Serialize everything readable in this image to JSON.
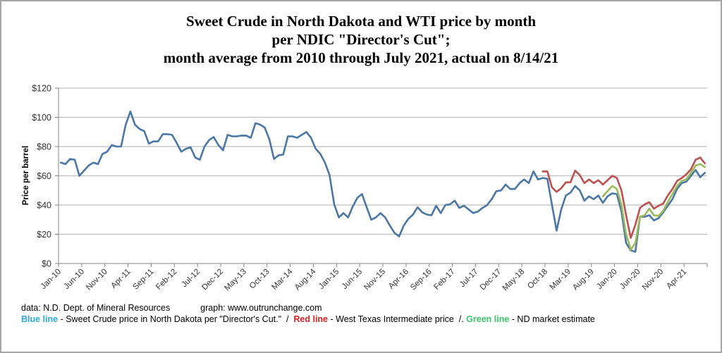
{
  "chart_data": {
    "type": "line",
    "title": [
      "Sweet Crude in North Dakota and WTI price by month",
      "per NDIC \"Director's Cut\";",
      "month average from 2010 through July 2021, actual on 8/14/21"
    ],
    "xlabel": "",
    "ylabel": "Price per barrel",
    "ylim": [
      0,
      120
    ],
    "yticks": [
      0,
      20,
      40,
      60,
      80,
      100,
      120
    ],
    "ytick_labels": [
      "$0",
      "$20",
      "$40",
      "$60",
      "$80",
      "$100",
      "$120"
    ],
    "grid": true,
    "x_start": "Jan-10",
    "x_count": 140,
    "xtick_every": 5,
    "xtick_labels": [
      "Jan-10",
      "Jun-10",
      "Nov-10",
      "Apr-11",
      "Sep-11",
      "Feb-12",
      "Jul-12",
      "Dec-12",
      "May-13",
      "Oct-13",
      "Mar-14",
      "Aug-14",
      "Jan-15",
      "Jun-15",
      "Nov-15",
      "Apr-16",
      "Sep-16",
      "Feb-17",
      "Jul-17",
      "Dec-17",
      "May-18",
      "Oct-18",
      "Mar-19",
      "Aug-19",
      "Jan-20",
      "Jun-20",
      "Nov-20",
      "Apr-21"
    ],
    "series": [
      {
        "name": "Blue line - Sweet Crude price in North Dakota",
        "color": "#4a76a8",
        "start_index": 0,
        "values": [
          69,
          68,
          71.5,
          71,
          60,
          63.5,
          67,
          69,
          68,
          75,
          76.5,
          81,
          80,
          80,
          95,
          104,
          95,
          92,
          90.5,
          82,
          83.5,
          83.5,
          88.5,
          88.5,
          88,
          82.5,
          76.5,
          78.5,
          79.5,
          72.5,
          71,
          80,
          84.5,
          86.5,
          81,
          77.5,
          88,
          87,
          87,
          87.5,
          87.5,
          86,
          96,
          95,
          93,
          85,
          71.5,
          74,
          74.5,
          87,
          87,
          86,
          88,
          90,
          86,
          78.5,
          75,
          69,
          60.5,
          40.5,
          31.5,
          34.5,
          31.5,
          39,
          45,
          47.5,
          38.5,
          30,
          31.5,
          34.5,
          31.5,
          26,
          21,
          18.5,
          26,
          30.5,
          33.5,
          38.5,
          35,
          33.5,
          33,
          39.5,
          34.5,
          40,
          40.5,
          43,
          38,
          39.5,
          37,
          34.5,
          35.5,
          38,
          40,
          44,
          49.5,
          50,
          54,
          51,
          51,
          55,
          57.5,
          55,
          63,
          57.5,
          58.5,
          58,
          40,
          22.5,
          37,
          46.5,
          48.5,
          53,
          50,
          43,
          46,
          44,
          46.5,
          41.5,
          46,
          48,
          47.5,
          35.5,
          14,
          9,
          8,
          32,
          32,
          33,
          29.5,
          31,
          35,
          39.5,
          44,
          51,
          55,
          56,
          60,
          64,
          59,
          62
        ]
      },
      {
        "name": "Red line - West Texas Intermediate price",
        "color": "#c0504d",
        "start_index": 104,
        "values": [
          63,
          63,
          52,
          49,
          51.5,
          55.5,
          55.5,
          63.5,
          60.5,
          55,
          57.5,
          55,
          57,
          54,
          57,
          60,
          58.5,
          50,
          33,
          17.5,
          26.5,
          38,
          40.5,
          42,
          37.5,
          39.5,
          41,
          46.5,
          51,
          56.5,
          58.5,
          61,
          64.5,
          71,
          72.5,
          68.5
        ]
      },
      {
        "name": "Green line - ND market estimate",
        "color": "#9bbb59",
        "start_index": 117,
        "values": [
          46,
          49.5,
          53,
          51,
          40,
          20,
          9.5,
          14,
          32,
          33,
          37.5,
          33,
          32.5,
          36,
          42,
          47.5,
          53,
          56.5,
          57.5,
          62,
          67,
          68,
          66
        ]
      }
    ]
  },
  "footer": {
    "source": "data: N.D. Dept. of Mineral Resources",
    "graph": "graph:  www.outrunchange.com",
    "blue_label": "Blue line",
    "blue_desc": " - Sweet Crude price in North Dakota per \"Director's Cut.\"  /  ",
    "red_label": "Red line",
    "red_desc": " - West Texas Intermediate price  /. ",
    "green_label": "Green line",
    "green_desc": " - ND market estimate"
  }
}
